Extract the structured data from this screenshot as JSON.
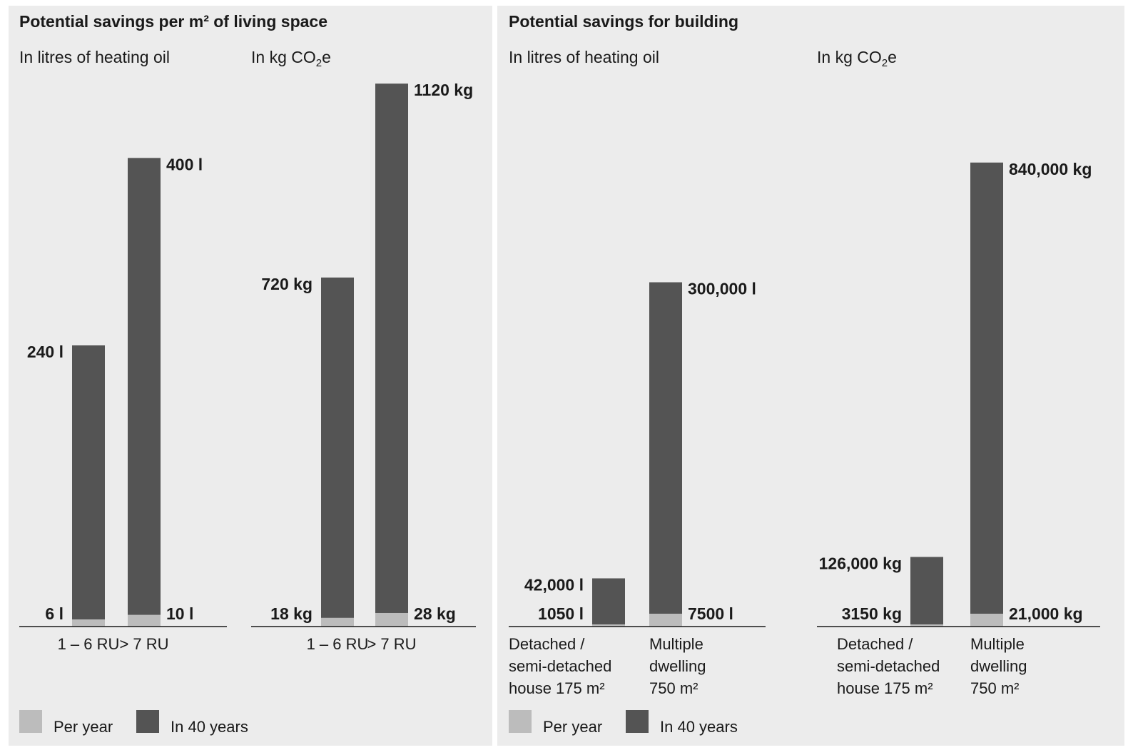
{
  "colors": {
    "per_year": "#bcbcbc",
    "in_40_years": "#545454",
    "background": "#ececec",
    "axis": "#1a1a1a"
  },
  "legend": {
    "per_year": "Per year",
    "in_40_years": "In 40 years"
  },
  "panels": [
    {
      "title": "Potential savings per m² of living space"
    },
    {
      "title": "Potential savings for building"
    }
  ],
  "chart_data": [
    {
      "type": "bar",
      "title": "Potential savings per m² of living space",
      "subtitle": "In litres of heating oil",
      "categories": [
        "1 – 6 RU",
        "> 7 RU"
      ],
      "series": [
        {
          "name": "Per year",
          "values": [
            6,
            10
          ],
          "labels": [
            "6 l",
            "10 l"
          ]
        },
        {
          "name": "In 40 years",
          "values": [
            240,
            400
          ],
          "labels": [
            "240 l",
            "400 l"
          ]
        }
      ],
      "ylim": [
        0,
        480
      ]
    },
    {
      "type": "bar",
      "title": "Potential savings per m² of living space",
      "subtitle": "In kg CO₂e",
      "categories": [
        "1 – 6 RU",
        "> 7 RU"
      ],
      "series": [
        {
          "name": "Per year",
          "values": [
            18,
            28
          ],
          "labels": [
            "18 kg",
            "28 kg"
          ]
        },
        {
          "name": "In 40 years",
          "values": [
            720,
            1120
          ],
          "labels": [
            "720 kg",
            "1120 kg"
          ]
        }
      ],
      "ylim": [
        0,
        1160
      ]
    },
    {
      "type": "bar",
      "title": "Potential savings for building",
      "subtitle": "In litres of heating oil",
      "categories": [
        "Detached / semi-detached house 175 m²",
        "Multiple dwelling 750 m²"
      ],
      "category_lines": [
        [
          "Detached /",
          "semi-detached",
          "house 175 m²"
        ],
        [
          "Multiple",
          "dwelling",
          "750 m²"
        ]
      ],
      "series": [
        {
          "name": "Per year",
          "values": [
            1050,
            7500
          ],
          "labels": [
            "1050 l",
            "7500 l"
          ]
        },
        {
          "name": "In 40 years",
          "values": [
            42000,
            300000
          ],
          "labels": [
            "42,000 l",
            "300,000 l"
          ]
        }
      ],
      "ylim": [
        0,
        490000
      ]
    },
    {
      "type": "bar",
      "title": "Potential savings for building",
      "subtitle": "In kg CO₂e",
      "categories": [
        "Detached / semi-detached house 175 m²",
        "Multiple dwelling 750 m²"
      ],
      "category_lines": [
        [
          "Detached /",
          "semi-detached",
          "house 175 m²"
        ],
        [
          "Multiple",
          "dwelling",
          "750 m²"
        ]
      ],
      "series": [
        {
          "name": "Per year",
          "values": [
            3150,
            21000
          ],
          "labels": [
            "3150 kg",
            "21,000 kg"
          ]
        },
        {
          "name": "In 40 years",
          "values": [
            126000,
            840000
          ],
          "labels": [
            "126,000 kg",
            "840,000 kg"
          ]
        }
      ],
      "ylim": [
        0,
        1018000
      ]
    }
  ]
}
